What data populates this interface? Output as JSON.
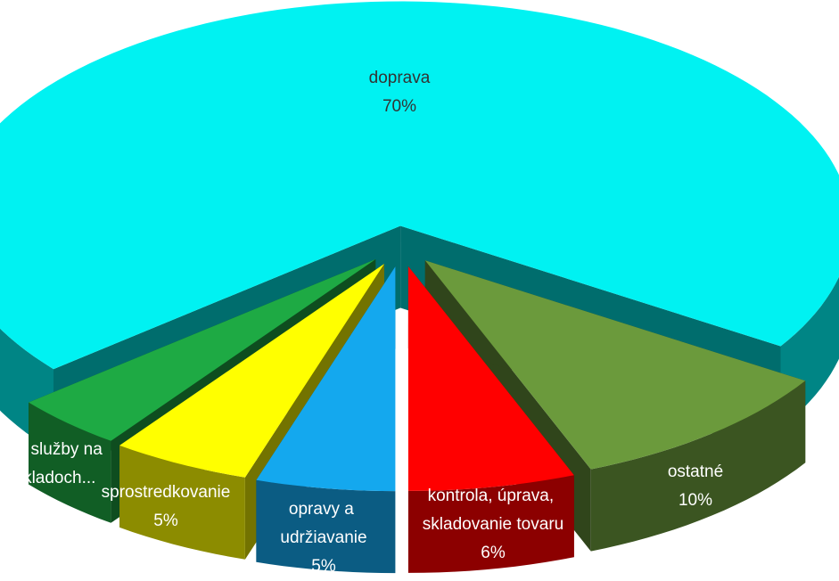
{
  "chart_data": {
    "type": "pie3d",
    "categories": [
      "kontrola, úprava, skladovanie tovaru",
      "ostatné",
      "doprava",
      "iné služby na skladoch...",
      "sprostredkovanie",
      "opravy a udržiavanie"
    ],
    "values": [
      6,
      10,
      70,
      4,
      5,
      5
    ],
    "value_labels": [
      "6%",
      "10%",
      "70%",
      null,
      "5%",
      "5%"
    ],
    "colors": [
      "#ff0000",
      "#6b9a3c",
      "#00f2f2",
      "#1eaa44",
      "#ffff00",
      "#14a8ee"
    ]
  }
}
